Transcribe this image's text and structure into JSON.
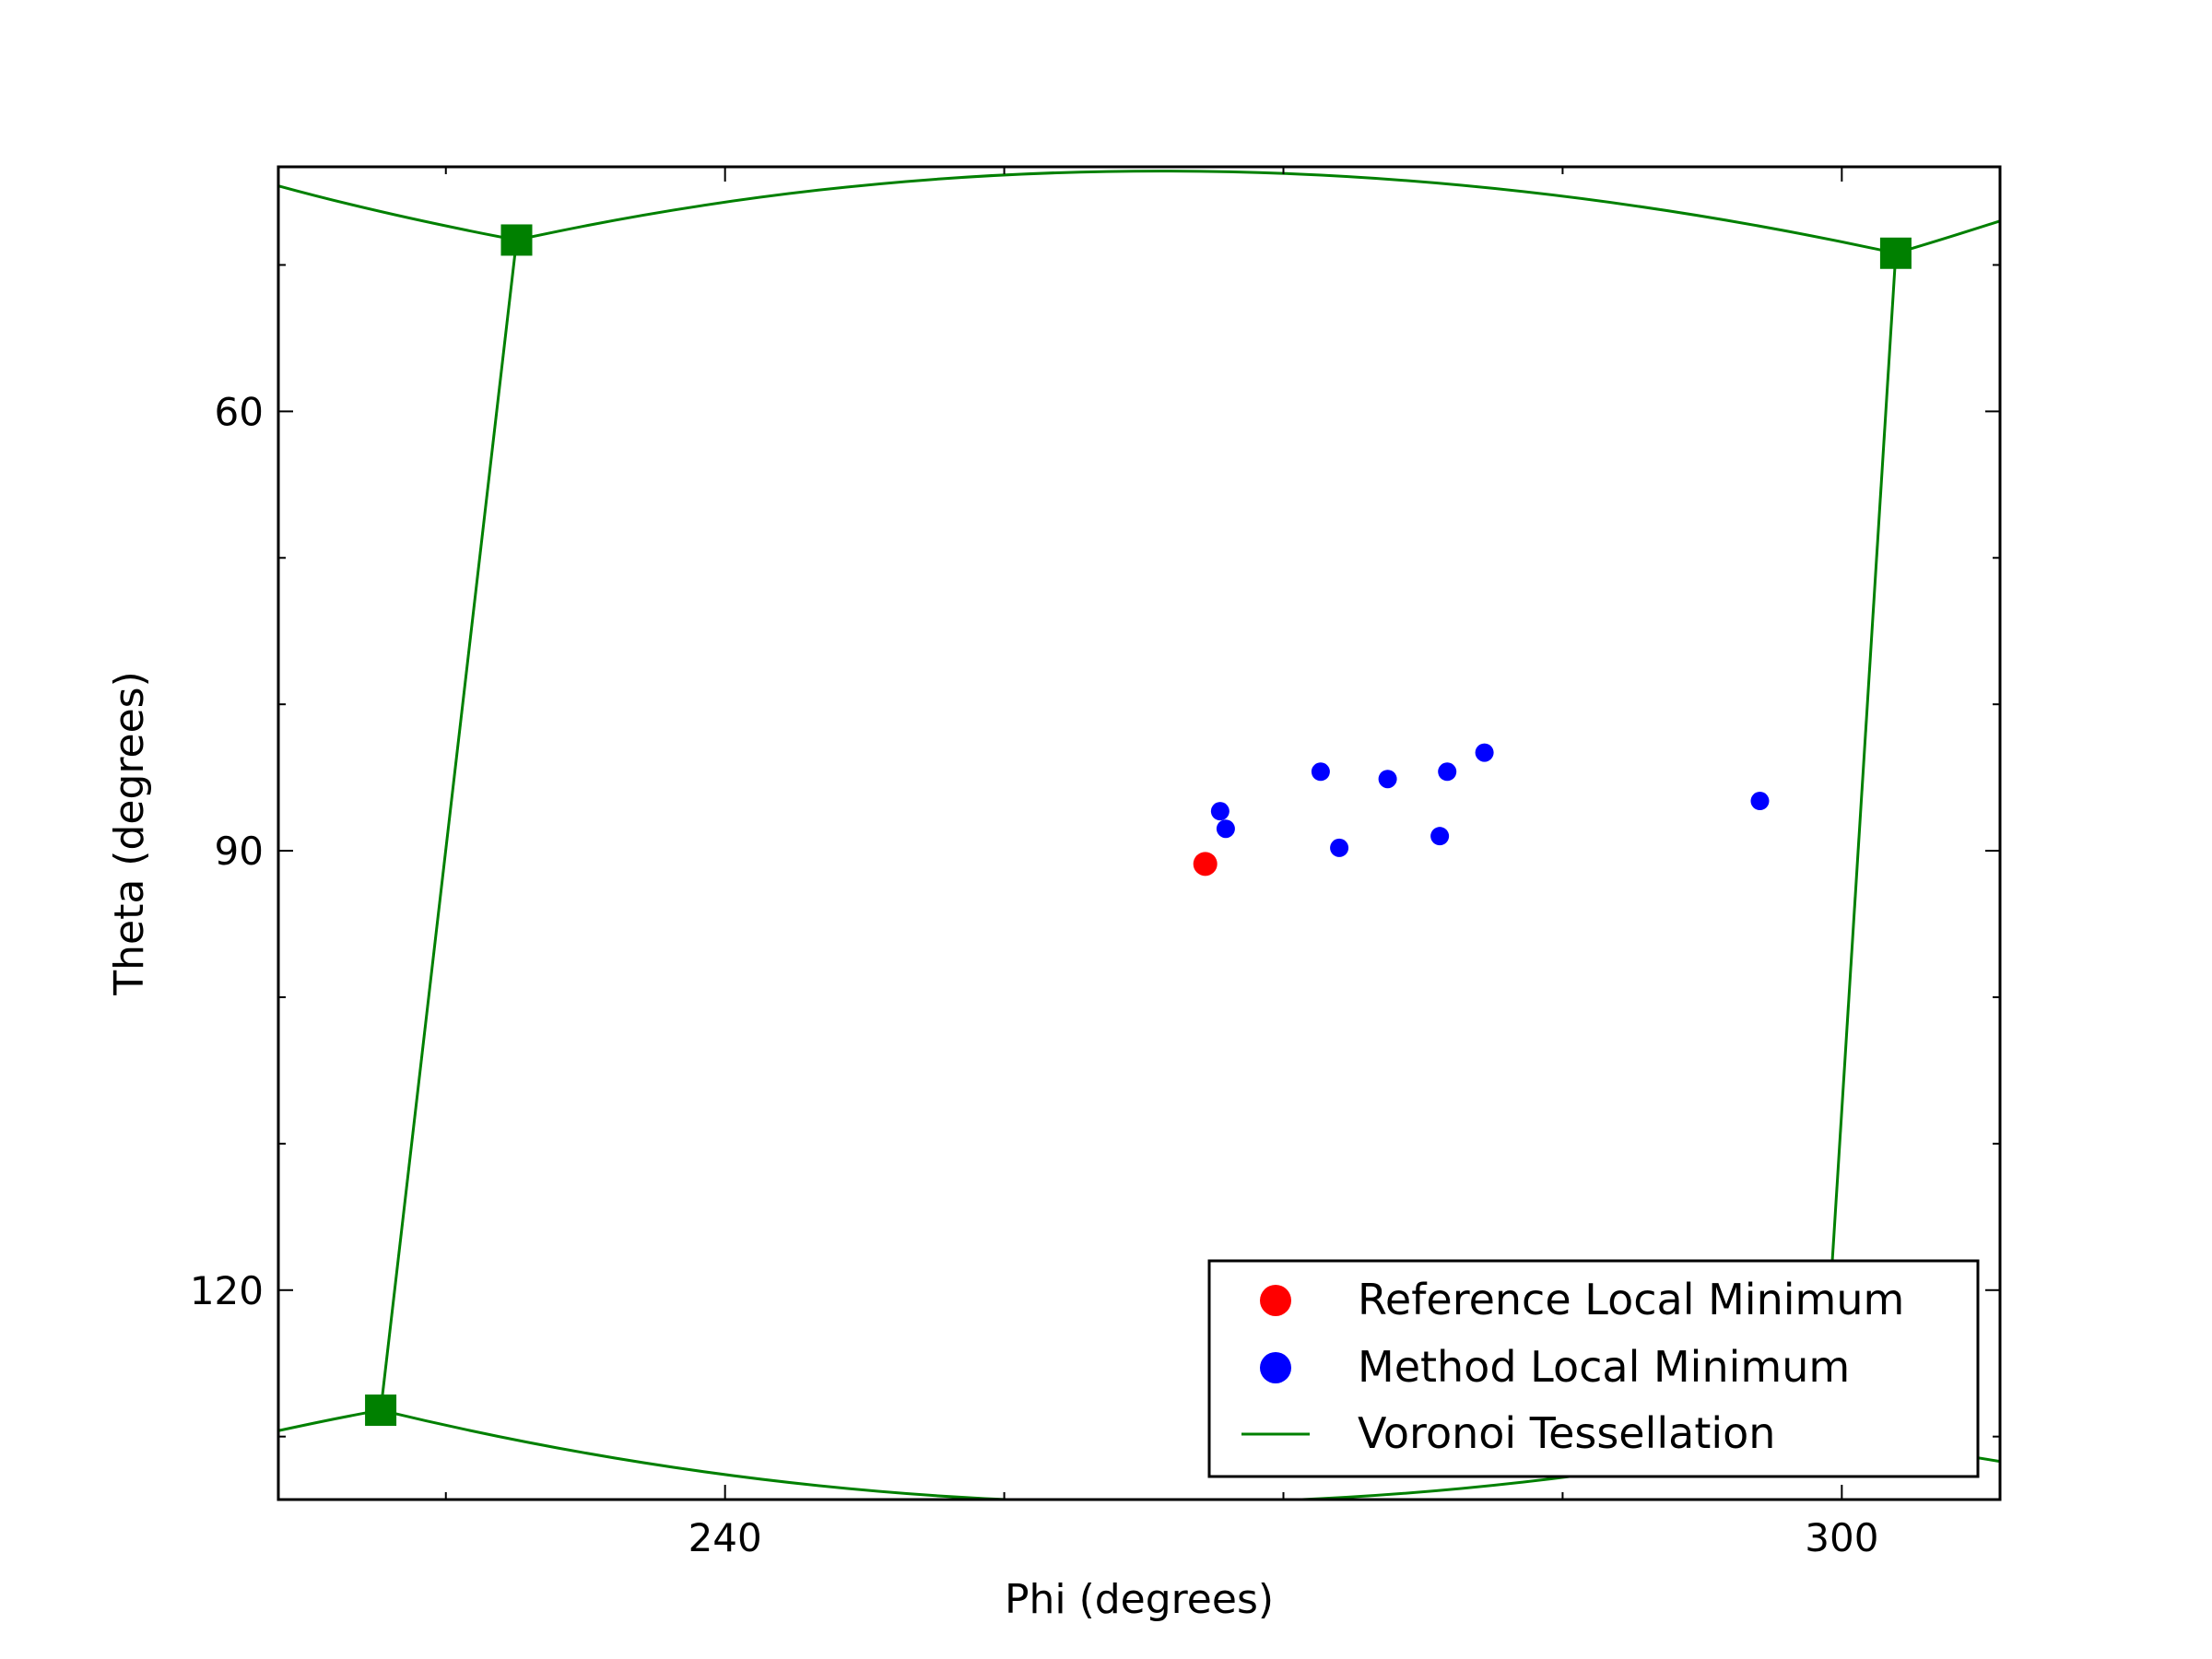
{
  "chart_data": {
    "type": "scatter",
    "title": "",
    "xlabel": "Phi (degrees)",
    "ylabel": "Theta (degrees)",
    "xlim": [
      216,
      308.5
    ],
    "ylim": [
      43.3,
      134.3
    ],
    "y_inverted": true,
    "x_major_ticks": [
      240,
      300
    ],
    "x_tick_labels": [
      "240",
      "300"
    ],
    "x_minor_ticks": [
      225,
      255,
      270,
      285
    ],
    "y_major_ticks": [
      60,
      90,
      120
    ],
    "y_tick_labels": [
      "60",
      "90",
      "120"
    ],
    "y_minor_ticks": [
      50,
      70,
      80,
      100,
      110,
      130
    ],
    "grid": false,
    "legend_position": "lower-right",
    "colors": {
      "reference": "#ff0000",
      "method": "#0000ff",
      "voronoi": "#008000"
    },
    "series": [
      {
        "name": "Reference Local Minimum",
        "kind": "points",
        "points": [
          [
            265.8,
            90.9
          ]
        ]
      },
      {
        "name": "Method Local Minimum",
        "kind": "points",
        "points": [
          [
            266.6,
            87.3
          ],
          [
            266.9,
            88.5
          ],
          [
            272.0,
            84.6
          ],
          [
            273.0,
            89.8
          ],
          [
            275.6,
            85.1
          ],
          [
            278.4,
            89.0
          ],
          [
            278.8,
            84.6
          ],
          [
            280.8,
            83.3
          ],
          [
            295.6,
            86.6
          ]
        ]
      },
      {
        "name": "Voronoi Tessellation",
        "kind": "lines",
        "vertices": [
          [
            228.8,
            48.3
          ],
          [
            302.9,
            49.2
          ],
          [
            221.5,
            128.2
          ],
          [
            298.9,
            129.9
          ]
        ],
        "edges": [
          [
            [
              216.0,
              44.6
            ],
            [
              222.0,
              46.5
            ],
            [
              228.8,
              48.3
            ]
          ],
          [
            [
              228.8,
              48.3
            ],
            [
              265.0,
              43.6
            ],
            [
              302.9,
              49.2
            ]
          ],
          [
            [
              302.9,
              49.2
            ],
            [
              305.5,
              48.2
            ],
            [
              308.5,
              47.0
            ]
          ],
          [
            [
              228.8,
              48.3
            ],
            [
              225.2,
              88.0
            ],
            [
              221.5,
              128.2
            ]
          ],
          [
            [
              302.9,
              49.2
            ],
            [
              300.9,
              89.0
            ],
            [
              298.9,
              129.9
            ]
          ],
          [
            [
              216.0,
              129.6
            ],
            [
              219.0,
              128.8
            ],
            [
              221.5,
              128.2
            ]
          ],
          [
            [
              221.5,
              128.2
            ],
            [
              260.0,
              134.5
            ],
            [
              298.9,
              129.9
            ]
          ],
          [
            [
              298.9,
              129.9
            ],
            [
              304.0,
              130.8
            ],
            [
              308.5,
              131.7
            ]
          ]
        ]
      }
    ]
  }
}
